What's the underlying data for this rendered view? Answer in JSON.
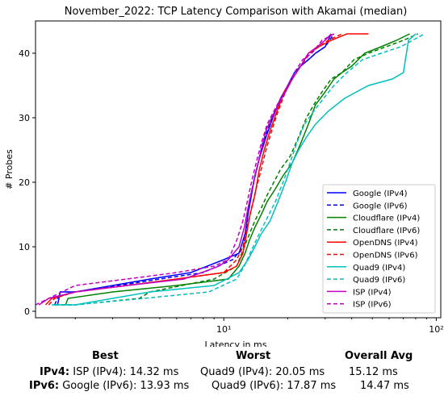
{
  "chart_data": {
    "type": "line",
    "title": "November_2022: TCP Latency Comparison with Akamai (median)",
    "xlabel": "Latency in ms",
    "ylabel": "# Probes",
    "xscale": "log",
    "xlim": [
      1.3,
      105
    ],
    "ylim": [
      -1,
      45
    ],
    "yticks": [
      0,
      10,
      20,
      30,
      40
    ],
    "xticks": [
      {
        "value": 10,
        "label": "10¹"
      },
      {
        "value": 100,
        "label": "10²"
      }
    ],
    "legend_position": "lower-right",
    "series": [
      {
        "name": "Google (IPv4)",
        "color": "#0000ff",
        "dash": false,
        "x": [
          1.65,
          1.7,
          2.0,
          3.0,
          4.5,
          7.0,
          10.0,
          11.8,
          12.6,
          13.0,
          13.5,
          14.0,
          14.8,
          15.8,
          17.0,
          18.5,
          20.0,
          21.5,
          23.0,
          25.0,
          27.0,
          30.0,
          32.0
        ],
        "y": [
          1,
          3,
          3,
          4,
          5,
          6,
          8,
          9,
          12,
          15,
          18,
          21,
          24,
          27,
          30,
          33,
          35,
          37,
          38,
          39,
          40,
          41,
          43
        ]
      },
      {
        "name": "Google (IPv6)",
        "color": "#0000ff",
        "dash": true,
        "x": [
          1.6,
          1.7,
          2.0,
          3.2,
          5.0,
          8.0,
          11.0,
          12.4,
          12.8,
          13.2,
          13.8,
          14.5,
          15.2,
          16.5,
          18.0,
          19.5,
          21.0,
          23.0,
          25.0,
          27.0,
          30.0,
          33.0
        ],
        "y": [
          1,
          3,
          3,
          4,
          5,
          6,
          8,
          10,
          13,
          17,
          20,
          23,
          26,
          29,
          32,
          34,
          36,
          38,
          39,
          40,
          41,
          43
        ]
      },
      {
        "name": "Cloudflare (IPv4)",
        "color": "#008000",
        "dash": false,
        "x": [
          1.8,
          1.85,
          3.0,
          6.0,
          10.5,
          11.8,
          12.6,
          13.2,
          14.0,
          15.0,
          16.0,
          17.5,
          19.0,
          21.0,
          23.0,
          25.0,
          27.0,
          30.0,
          33.0,
          36.0,
          40.0,
          46.0,
          55.0,
          65.0,
          75.0
        ],
        "y": [
          1,
          2,
          3,
          4,
          5,
          7,
          9,
          11,
          13,
          15,
          17,
          19,
          21,
          23,
          26,
          29,
          32,
          34,
          36,
          37,
          38,
          40,
          41,
          42,
          43
        ]
      },
      {
        "name": "Cloudflare (IPv6)",
        "color": "#008000",
        "dash": true,
        "x": [
          1.6,
          2.0,
          4.0,
          4.5,
          9.0,
          11.5,
          12.5,
          13.2,
          14.0,
          15.0,
          16.0,
          17.2,
          18.5,
          20.5,
          22.5,
          24.5,
          26.5,
          29.0,
          32.0,
          36.0,
          41.0,
          48.0,
          58.0,
          70.0,
          82.0
        ],
        "y": [
          1,
          1,
          2,
          3,
          5,
          7,
          10,
          12,
          14,
          16,
          18,
          20,
          22,
          24,
          27,
          30,
          32,
          34,
          36,
          37,
          39,
          40,
          41,
          42,
          43
        ]
      },
      {
        "name": "OpenDNS (IPv4)",
        "color": "#ff0000",
        "dash": false,
        "x": [
          1.45,
          1.55,
          2.0,
          3.5,
          6.0,
          10.0,
          11.5,
          12.3,
          12.8,
          13.3,
          14.0,
          14.7,
          15.5,
          16.5,
          17.8,
          19.2,
          21.0,
          23.0,
          25.0,
          28.0,
          32.0,
          38.0,
          48.0
        ],
        "y": [
          1,
          2,
          3,
          4,
          5,
          6,
          7,
          9,
          12,
          15,
          18,
          22,
          25,
          28,
          31,
          34,
          36,
          38,
          40,
          41,
          42,
          43,
          43
        ]
      },
      {
        "name": "OpenDNS (IPv6)",
        "color": "#ff0000",
        "dash": true,
        "x": [
          1.5,
          1.6,
          2.0,
          3.5,
          6.0,
          10.0,
          11.5,
          12.3,
          12.9,
          13.5,
          14.2,
          15.0,
          15.8,
          16.8,
          18.0,
          19.5,
          21.0,
          23.0,
          25.5,
          28.0,
          31.0,
          36.0
        ],
        "y": [
          1,
          2,
          3,
          4,
          5,
          6,
          8,
          10,
          13,
          16,
          19,
          22,
          25,
          28,
          31,
          34,
          36,
          38,
          40,
          41,
          42,
          43
        ]
      },
      {
        "name": "Quad9 (IPv4)",
        "color": "#00bfbf",
        "dash": false,
        "x": [
          1.55,
          2.0,
          4.5,
          9.0,
          11.8,
          13.0,
          14.0,
          15.0,
          16.5,
          18.0,
          19.5,
          21.0,
          22.5,
          24.5,
          27.0,
          31.0,
          37.0,
          48.0,
          62.0,
          70.0,
          74.0,
          80.0
        ],
        "y": [
          1,
          1,
          3,
          4,
          6,
          8,
          10,
          12,
          14,
          17,
          20,
          23,
          25,
          27,
          29,
          31,
          33,
          35,
          36,
          37,
          42,
          43
        ]
      },
      {
        "name": "Quad9 (IPv6)",
        "color": "#00bfbf",
        "dash": true,
        "x": [
          1.6,
          2.0,
          4.2,
          8.5,
          11.5,
          12.5,
          13.3,
          14.2,
          15.2,
          16.3,
          17.5,
          19.0,
          20.5,
          22.0,
          24.0,
          26.5,
          29.5,
          33.0,
          38.0,
          45.0,
          55.0,
          68.0,
          88.0
        ],
        "y": [
          1,
          1,
          2,
          3,
          5,
          7,
          9,
          11,
          13,
          15,
          17,
          20,
          23,
          26,
          29,
          31,
          33,
          35,
          37,
          39,
          40,
          41,
          43
        ]
      },
      {
        "name": "ISP (IPv4)",
        "color": "#bf00bf",
        "dash": false,
        "x": [
          1.35,
          1.5,
          2.0,
          3.5,
          6.5,
          9.5,
          10.5,
          11.8,
          12.5,
          13.0,
          13.6,
          14.3,
          15.0,
          15.8,
          16.8,
          18.0,
          19.5,
          21.0,
          23.0,
          25.0,
          27.5,
          30.0,
          32.0
        ],
        "y": [
          1,
          2,
          3,
          4,
          5,
          7,
          8,
          10,
          13,
          16,
          19,
          22,
          25,
          28,
          30,
          32,
          34,
          36,
          38,
          40,
          41,
          42,
          43
        ]
      },
      {
        "name": "ISP (IPv6)",
        "color": "#bf00bf",
        "dash": true,
        "x": [
          1.3,
          1.5,
          2.0,
          3.5,
          6.0,
          9.0,
          10.5,
          11.5,
          12.3,
          12.9,
          13.5,
          14.2,
          15.0,
          16.0,
          17.2,
          18.5,
          20.0,
          21.5,
          23.5,
          26.0,
          29.0,
          33.0
        ],
        "y": [
          1,
          2,
          4,
          5,
          6,
          7,
          8,
          11,
          14,
          17,
          20,
          23,
          26,
          29,
          31,
          33,
          35,
          37,
          39,
          40,
          42,
          43
        ]
      }
    ]
  },
  "summary": {
    "headers": {
      "best": "Best",
      "worst": "Worst",
      "avg": "Overall Avg"
    },
    "ipv4": {
      "label": "IPv4:",
      "best": "ISP (IPv4): 14.32 ms",
      "worst": "Quad9 (IPv4): 20.05 ms",
      "avg": "15.12 ms"
    },
    "ipv6": {
      "label": "IPv6:",
      "best": "Google (IPv6): 13.93 ms",
      "worst": "Quad9 (IPv6): 17.87 ms",
      "avg": "14.47 ms"
    }
  }
}
